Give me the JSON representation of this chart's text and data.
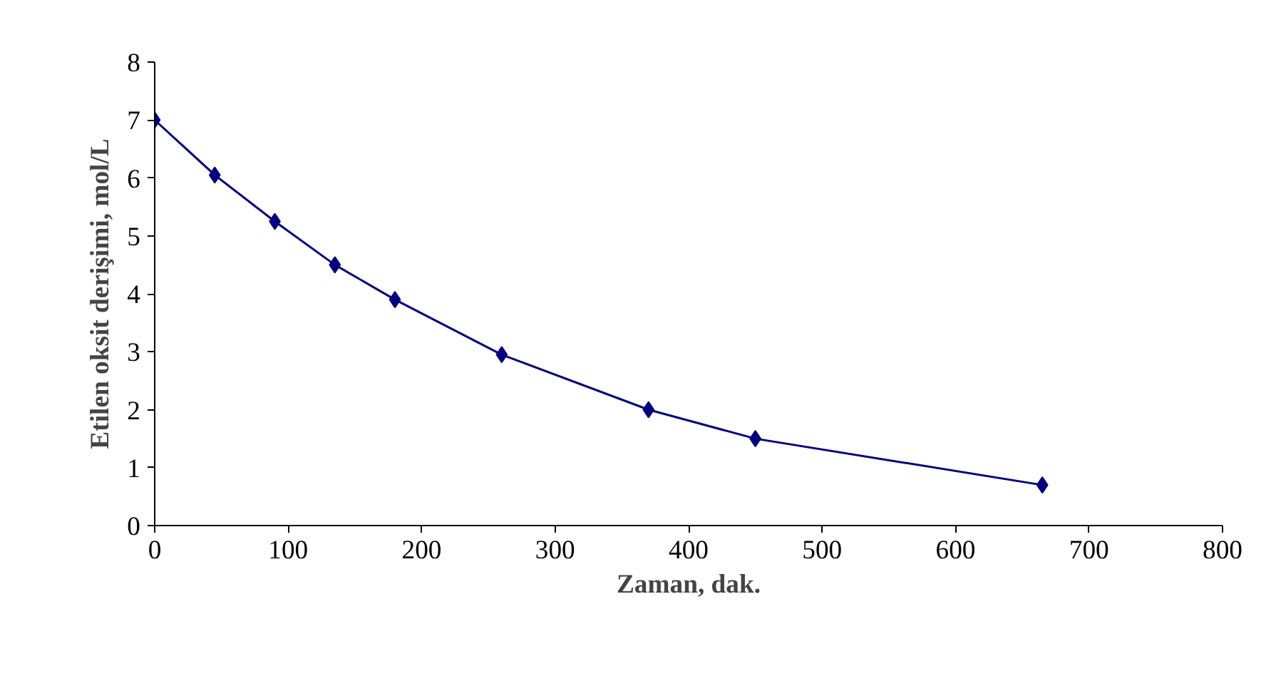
{
  "chart_data": {
    "type": "line",
    "xlabel": "Zaman, dak.",
    "ylabel": "Etilen oksit derişimi, mol/L",
    "x": [
      0,
      45,
      90,
      135,
      180,
      260,
      370,
      450,
      665
    ],
    "series": [
      {
        "color": "#000080",
        "values": [
          7.0,
          6.05,
          5.25,
          4.5,
          3.9,
          2.95,
          2.0,
          1.5,
          0.7
        ]
      }
    ],
    "xlim": [
      0,
      800
    ],
    "xticks": [
      0,
      100,
      200,
      300,
      400,
      500,
      600,
      700,
      800
    ],
    "ylim": [
      0,
      8
    ],
    "yticks": [
      0,
      1,
      2,
      3,
      4,
      5,
      6,
      7,
      8
    ],
    "grid": false,
    "marker": "diamond",
    "line_style": "solid"
  }
}
